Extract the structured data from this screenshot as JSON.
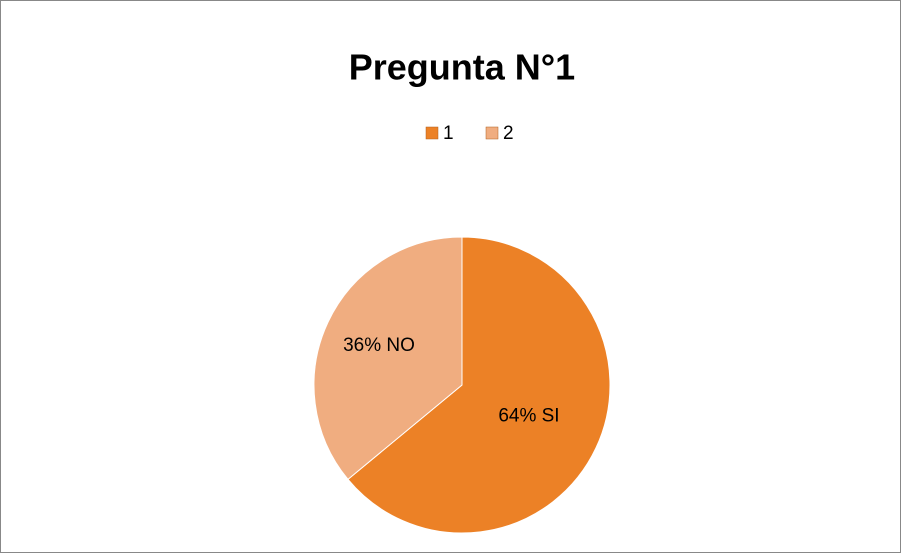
{
  "chart_data": {
    "type": "pie",
    "title": "Pregunta N°1",
    "categories": [
      "1",
      "2"
    ],
    "values": [
      64,
      36
    ],
    "value_labels": [
      "64% SI",
      "36% NO"
    ],
    "colors": [
      "#ec8126",
      "#f0ad80"
    ],
    "legend": "top"
  }
}
